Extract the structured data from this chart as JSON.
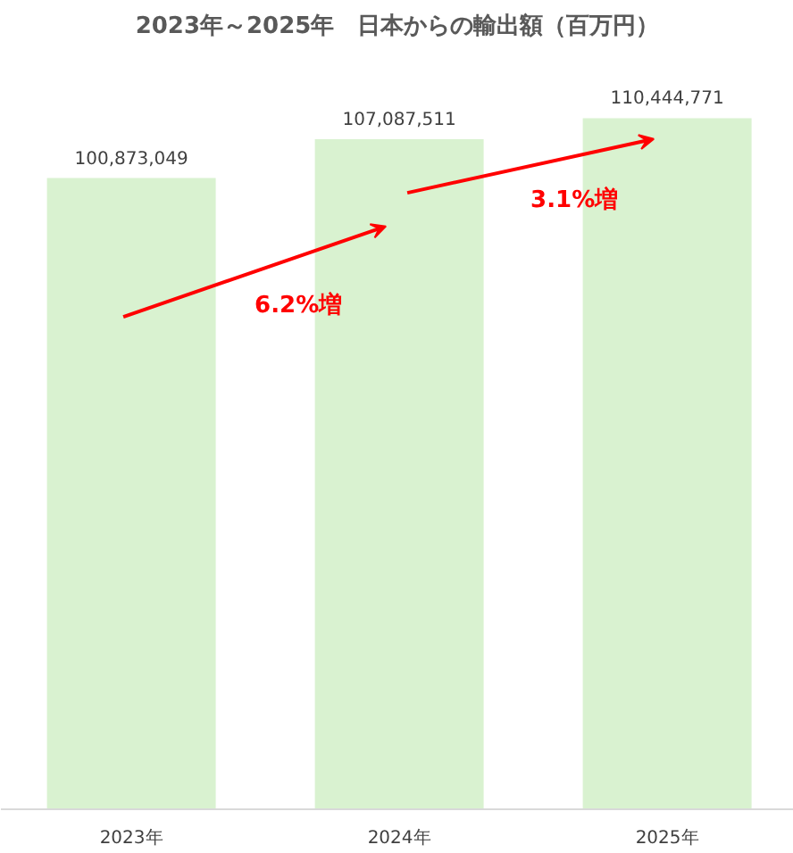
{
  "chart_data": {
    "type": "bar",
    "title": "2023年～2025年　日本からの輸出額（百万円）",
    "categories": [
      "2023年",
      "2024年",
      "2025年"
    ],
    "values": [
      100873049,
      107087511,
      110444771
    ],
    "color": "#d9f2d0",
    "value_labels": [
      "100,873,049",
      "107,087,511",
      "110,444,771"
    ],
    "grid": false,
    "tick_labels": "x",
    "annotations": [
      "6.2%増",
      "3.1%増"
    ]
  }
}
